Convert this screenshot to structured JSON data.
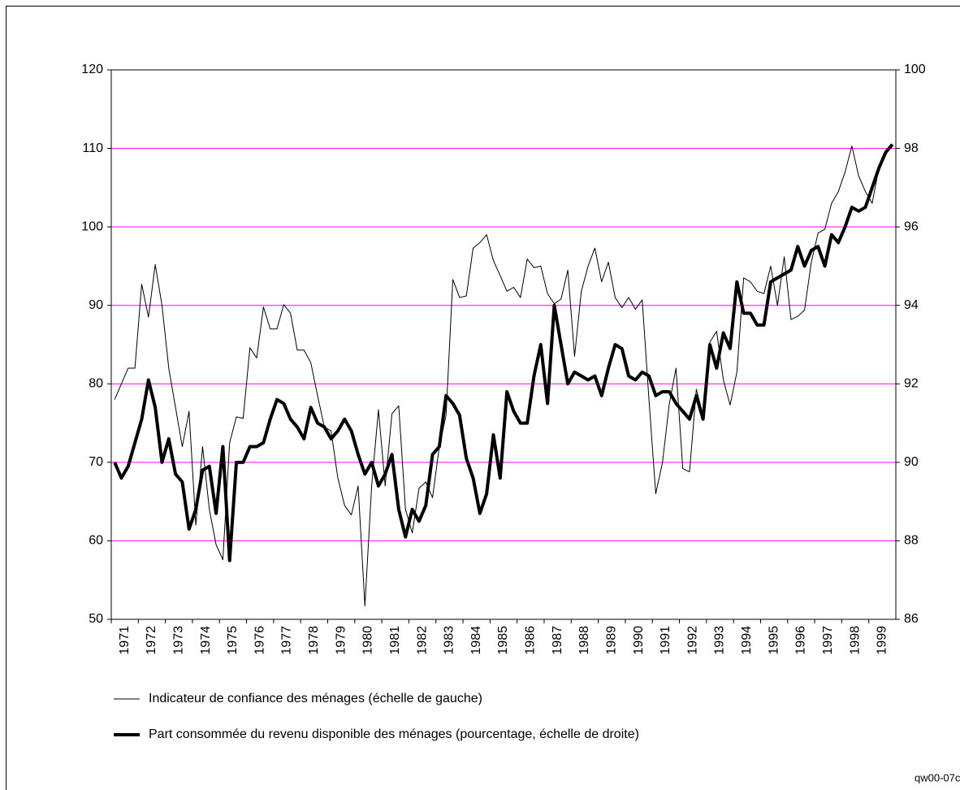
{
  "chart_data": {
    "type": "line",
    "categories": [
      "1971",
      null,
      null,
      null,
      "1972",
      null,
      null,
      null,
      "1973",
      null,
      null,
      null,
      "1974",
      null,
      null,
      null,
      "1975",
      null,
      null,
      null,
      "1976",
      null,
      null,
      null,
      "1977",
      null,
      null,
      null,
      "1978",
      null,
      null,
      null,
      "1979",
      null,
      null,
      null,
      "1980",
      null,
      null,
      null,
      "1981",
      null,
      null,
      null,
      "1982",
      null,
      null,
      null,
      "1983",
      null,
      null,
      null,
      "1984",
      null,
      null,
      null,
      "1985",
      null,
      null,
      null,
      "1986",
      null,
      null,
      null,
      "1987",
      null,
      null,
      null,
      "1988",
      null,
      null,
      null,
      "1989",
      null,
      null,
      null,
      "1990",
      null,
      null,
      null,
      "1991",
      null,
      null,
      null,
      "1992",
      null,
      null,
      null,
      "1993",
      null,
      null,
      null,
      "1994",
      null,
      null,
      null,
      "1995",
      null,
      null,
      null,
      "1996",
      null,
      null,
      null,
      "1997",
      null,
      null,
      null,
      "1998",
      null,
      null,
      null,
      "1999",
      null,
      null,
      null
    ],
    "series": [
      {
        "name": "Indicateur de confiance des ménages (échelle de gauche)",
        "color": "#000000",
        "line_width": 1,
        "values": [
          78,
          80,
          82,
          82,
          92.7,
          88.5,
          95.2,
          90,
          82,
          77,
          72,
          76.5,
          62,
          72,
          64,
          59.5,
          57.6,
          72.5,
          75.8,
          75.6,
          84.6,
          83.3,
          89.8,
          87,
          87,
          90.1,
          89,
          84.3,
          84.3,
          82.7,
          78.5,
          74.5,
          74,
          68,
          64.5,
          63.3,
          67,
          51.7,
          67,
          76.7,
          67,
          76.2,
          77.2,
          64,
          61,
          66.7,
          67.5,
          65.5,
          72,
          76,
          93.3,
          91,
          91.2,
          97.3,
          98,
          99,
          95.7,
          93.8,
          91.8,
          92.3,
          91,
          95.9,
          94.8,
          95,
          91.5,
          90.2,
          90.8,
          94.5,
          83.5,
          91.8,
          95,
          97.3,
          93,
          95.5,
          91,
          89.7,
          91,
          89.5,
          90.7,
          78,
          66,
          70,
          77.4,
          82,
          69.2,
          68.8,
          79.3,
          76,
          85.3,
          86.7,
          80.5,
          77.3,
          81.5,
          93.5,
          93,
          91.8,
          91.5,
          95,
          90,
          96.2,
          88.2,
          88.6,
          89.4,
          95.5,
          99.2,
          99.7,
          103,
          104.5,
          107,
          110.3,
          106.5,
          104.5,
          103,
          107.5,
          null,
          null
        ]
      },
      {
        "name": "Part consommée du revenu disponible des ménages (pourcentage, échelle de droite)",
        "color": "#000000",
        "line_width": 4,
        "axis": "y2",
        "values": [
          90,
          89.6,
          89.9,
          90.5,
          91.1,
          92.1,
          91.4,
          90,
          90.6,
          89.7,
          89.5,
          88.3,
          88.8,
          89.8,
          89.9,
          88.7,
          90.4,
          87.5,
          90,
          90,
          90.4,
          90.4,
          90.5,
          91.1,
          91.6,
          91.5,
          91.1,
          90.9,
          90.6,
          91.4,
          91,
          90.9,
          90.6,
          90.8,
          91.1,
          90.8,
          90.2,
          89.7,
          90,
          89.4,
          89.7,
          90.2,
          88.8,
          88.1,
          88.8,
          88.5,
          88.9,
          90.2,
          90.4,
          91.7,
          91.5,
          91.2,
          90.1,
          89.6,
          88.7,
          89.2,
          90.7,
          89.6,
          91.8,
          91.3,
          91,
          91,
          92.2,
          93,
          91.5,
          94,
          93,
          92,
          92.3,
          92.2,
          92.1,
          92.2,
          91.7,
          92.4,
          93,
          92.9,
          92.2,
          92.1,
          92.3,
          92.2,
          91.7,
          91.8,
          91.8,
          91.5,
          91.3,
          91.1,
          91.7,
          91.1,
          93,
          92.4,
          93.3,
          92.9,
          94.6,
          93.8,
          93.8,
          93.5,
          93.5,
          94.6,
          94.7,
          94.8,
          94.9,
          95.5,
          95,
          95.4,
          95.5,
          95,
          95.8,
          95.6,
          96,
          96.5,
          96.4,
          96.5,
          97,
          97.5,
          97.9,
          98.1
        ]
      }
    ],
    "ylim": [
      50,
      120
    ],
    "yticks": [
      50,
      60,
      70,
      80,
      90,
      100,
      110,
      120
    ],
    "y2lim": [
      86,
      100
    ],
    "y2ticks": [
      86,
      88,
      90,
      92,
      94,
      96,
      98,
      100
    ],
    "grid": true,
    "grid_color": "#ff00ff",
    "footnote": "qw00-07c"
  }
}
